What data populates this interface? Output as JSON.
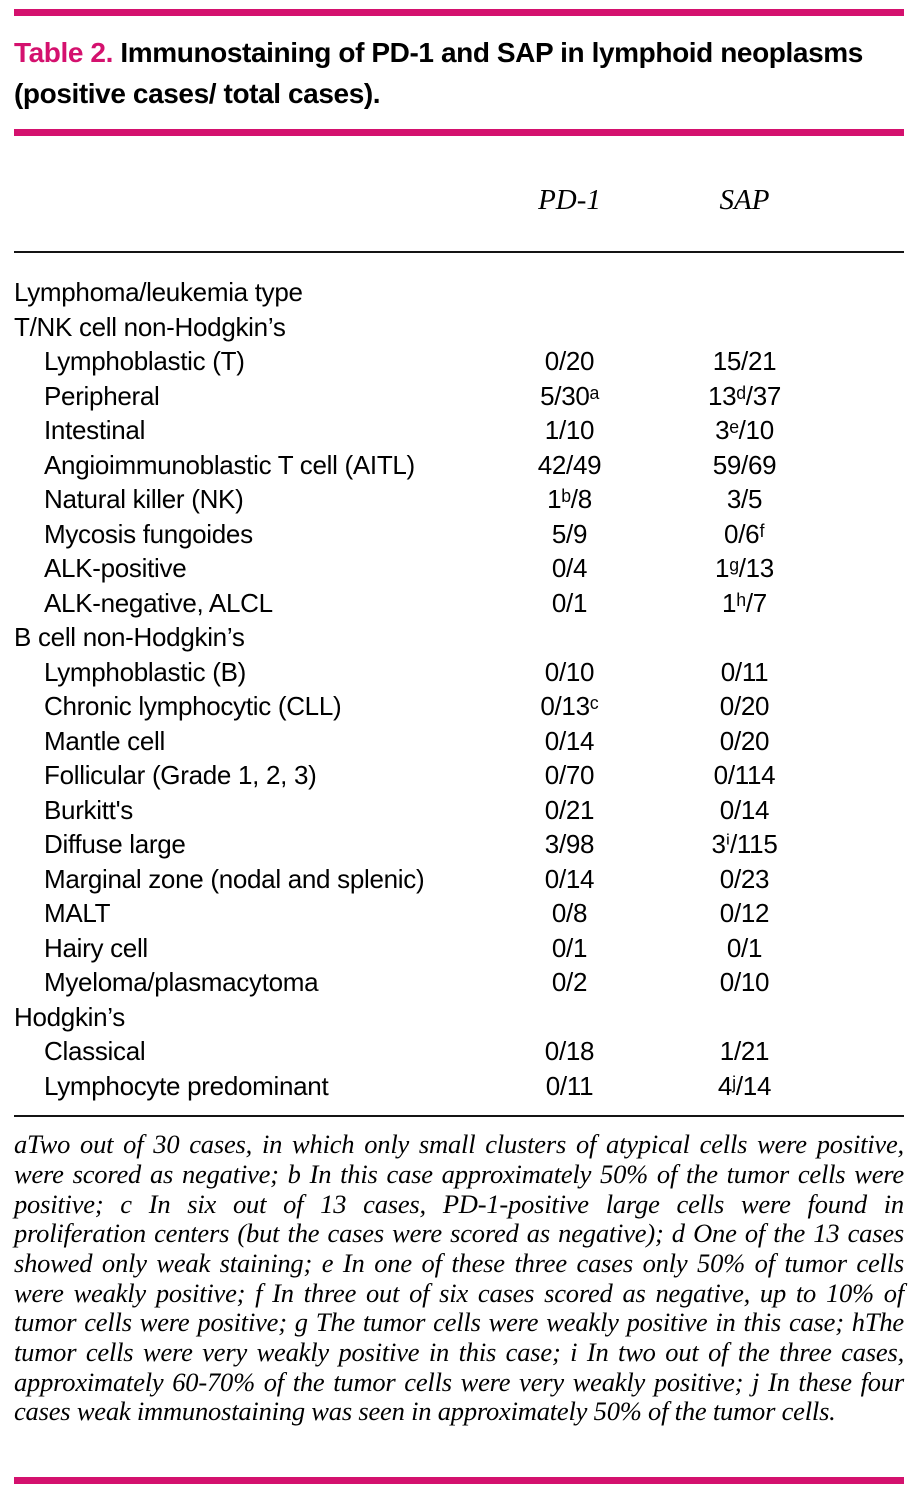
{
  "accent_color": "#d4116e",
  "title": {
    "label": "Table 2.",
    "line1": " Immunostaining of PD-1 and SAP in lymphoid neoplasms",
    "line2": "(positive cases/ total cases)."
  },
  "columns": [
    "PD-1",
    "SAP"
  ],
  "rows": [
    {
      "label": "Lymphoma/leukemia type",
      "indent": 0,
      "pd1": "",
      "sap": ""
    },
    {
      "label": "T/NK cell non-Hodgkin’s",
      "indent": 0,
      "pd1": "",
      "sap": ""
    },
    {
      "label": "Lymphoblastic (T)",
      "indent": 1,
      "pd1": "0/20",
      "sap": "15/21"
    },
    {
      "label": "Peripheral",
      "indent": 1,
      "pd1": "5/30ᵃ",
      "sap": "13ᵈ/37"
    },
    {
      "label": "Intestinal",
      "indent": 1,
      "pd1": "1/10",
      "sap": "3ᵉ/10"
    },
    {
      "label": "Angioimmunoblastic T cell (AITL)",
      "indent": 1,
      "pd1": "42/49",
      "sap": "59/69"
    },
    {
      "label": "Natural killer (NK)",
      "indent": 1,
      "pd1": "1ᵇ/8",
      "sap": "3/5"
    },
    {
      "label": "Mycosis fungoides",
      "indent": 1,
      "pd1": "5/9",
      "sap": "0/6ᶠ"
    },
    {
      "label": "ALK-positive",
      "indent": 1,
      "pd1": "0/4",
      "sap": "1ᵍ/13"
    },
    {
      "label": "ALK-negative, ALCL",
      "indent": 1,
      "pd1": "0/1",
      "sap": "1ʰ/7"
    },
    {
      "label": "B cell non-Hodgkin’s",
      "indent": 0,
      "pd1": "",
      "sap": ""
    },
    {
      "label": "Lymphoblastic (B)",
      "indent": 1,
      "pd1": "0/10",
      "sap": "0/11"
    },
    {
      "label": "Chronic lymphocytic (CLL)",
      "indent": 1,
      "pd1": "0/13ᶜ",
      "sap": "0/20"
    },
    {
      "label": "Mantle cell",
      "indent": 1,
      "pd1": "0/14",
      "sap": "0/20"
    },
    {
      "label": "Follicular (Grade 1, 2, 3)",
      "indent": 1,
      "pd1": "0/70",
      "sap": "0/114"
    },
    {
      "label": "Burkitt's",
      "indent": 1,
      "pd1": "0/21",
      "sap": "0/14"
    },
    {
      "label": "Diffuse large",
      "indent": 1,
      "pd1": "3/98",
      "sap": "3ⁱ/115"
    },
    {
      "label": "Marginal zone (nodal and splenic)",
      "indent": 1,
      "pd1": "0/14",
      "sap": "0/23"
    },
    {
      "label": "MALT",
      "indent": 1,
      "pd1": "0/8",
      "sap": "0/12"
    },
    {
      "label": "Hairy cell",
      "indent": 1,
      "pd1": "0/1",
      "sap": "0/1"
    },
    {
      "label": "Myeloma/plasmacytoma",
      "indent": 1,
      "pd1": "0/2",
      "sap": "0/10"
    },
    {
      "label": "Hodgkin’s",
      "indent": 0,
      "pd1": "",
      "sap": ""
    },
    {
      "label": "Classical",
      "indent": 1,
      "pd1": "0/18",
      "sap": "1/21"
    },
    {
      "label": "Lymphocyte predominant",
      "indent": 1,
      "pd1": "0/11",
      "sap": "4ʲ/14"
    }
  ],
  "footnote": "aTwo out of 30 cases, in which only small clusters of atypical cells were positive, were scored as negative; b In this case approximately 50% of the tumor cells were positive; c In six out of 13 cases, PD-1-positive large cells were found in proliferation centers (but the cases were scored as negative); d One of the 13 cases showed only weak staining; e In one of these three cases only 50% of tumor cells were weakly positive; f In three out of six cases scored as negative, up to 10% of tumor cells were positive; g The tumor cells were weakly positive in this case; hThe tumor cells were very weakly positive in this case; i In two out of the three cases, approximately 60-70% of the tumor cells were very weakly positive; j In these four cases weak immunostaining was seen in approximately 50% of the tumor cells."
}
